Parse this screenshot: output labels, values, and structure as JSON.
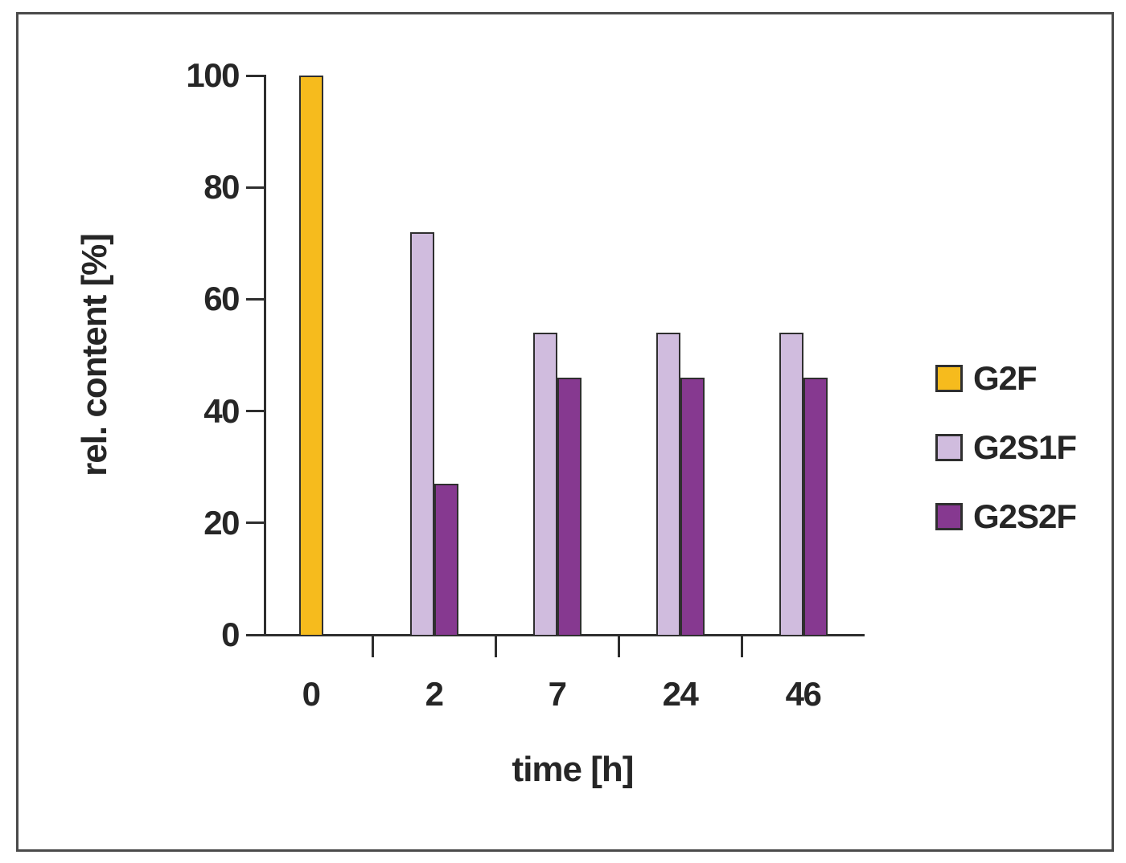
{
  "chart_data": {
    "type": "bar",
    "title": "",
    "xlabel": "time [h]",
    "ylabel": "rel. content [%]",
    "categories": [
      "0",
      "2",
      "7",
      "24",
      "46"
    ],
    "series": [
      {
        "name": "G2F",
        "color": "#F6BB1D",
        "values": [
          100,
          null,
          null,
          null,
          null
        ]
      },
      {
        "name": "G2S1F",
        "color": "#D0BCDE",
        "values": [
          null,
          72,
          54,
          54,
          54
        ]
      },
      {
        "name": "G2S2F",
        "color": "#863990",
        "values": [
          null,
          27,
          46,
          46,
          46
        ]
      }
    ],
    "ylim": [
      0,
      100
    ],
    "yticks": [
      0,
      20,
      40,
      60,
      80,
      100
    ],
    "grid": false,
    "legend_position": "right",
    "colors": {
      "axis": "#2e2e2e",
      "bar_border": "#2f2f2f",
      "text": "#262626",
      "frame": "#4a4a4a",
      "background": "#ffffff"
    }
  }
}
